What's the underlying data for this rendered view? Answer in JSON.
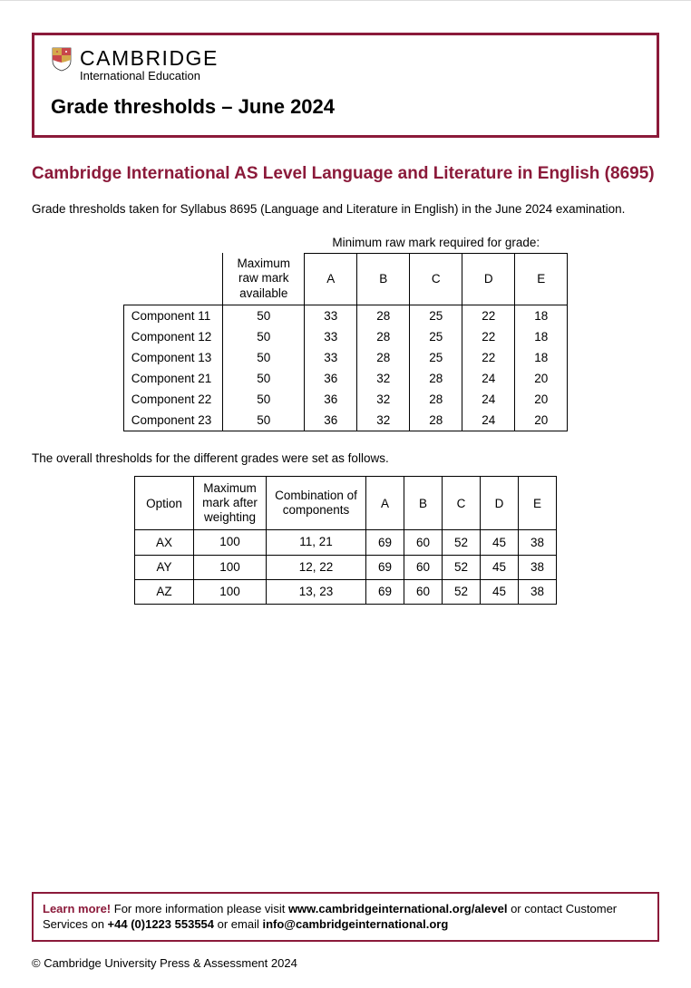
{
  "colors": {
    "brand": "#8b1a3a",
    "text": "#000000",
    "background": "#ffffff",
    "border": "#000000"
  },
  "header": {
    "brand_main": "CAMBRIDGE",
    "brand_sub": "International Education",
    "page_title": "Grade thresholds – June 2024"
  },
  "document": {
    "title": "Cambridge International AS Level Language and Literature in English (8695)",
    "intro": "Grade thresholds taken for Syllabus 8695 (Language and Literature in English) in the June 2024 examination."
  },
  "table1": {
    "spanner": "Minimum raw mark required for grade:",
    "hdr_max": "Maximum raw mark available",
    "grade_headers": [
      "A",
      "B",
      "C",
      "D",
      "E"
    ],
    "rows": [
      {
        "name": "Component 11",
        "max": "50",
        "g": [
          "33",
          "28",
          "25",
          "22",
          "18"
        ]
      },
      {
        "name": "Component 12",
        "max": "50",
        "g": [
          "33",
          "28",
          "25",
          "22",
          "18"
        ]
      },
      {
        "name": "Component 13",
        "max": "50",
        "g": [
          "33",
          "28",
          "25",
          "22",
          "18"
        ]
      },
      {
        "name": "Component 21",
        "max": "50",
        "g": [
          "36",
          "32",
          "28",
          "24",
          "20"
        ]
      },
      {
        "name": "Component 22",
        "max": "50",
        "g": [
          "36",
          "32",
          "28",
          "24",
          "20"
        ]
      },
      {
        "name": "Component 23",
        "max": "50",
        "g": [
          "36",
          "32",
          "28",
          "24",
          "20"
        ]
      }
    ]
  },
  "intro2": "The overall thresholds for the different grades were set as follows.",
  "table2": {
    "headers": {
      "option": "Option",
      "max_weight": "Maximum mark after weighting",
      "combination": "Combination of components",
      "grades": [
        "A",
        "B",
        "C",
        "D",
        "E"
      ]
    },
    "rows": [
      {
        "option": "AX",
        "max": "100",
        "comb": "11, 21",
        "g": [
          "69",
          "60",
          "52",
          "45",
          "38"
        ]
      },
      {
        "option": "AY",
        "max": "100",
        "comb": "12, 22",
        "g": [
          "69",
          "60",
          "52",
          "45",
          "38"
        ]
      },
      {
        "option": "AZ",
        "max": "100",
        "comb": "13, 23",
        "g": [
          "69",
          "60",
          "52",
          "45",
          "38"
        ]
      }
    ]
  },
  "footer": {
    "learn": "Learn more!",
    "text1": " For more information please visit ",
    "url": "www.cambridgeinternational.org/alevel",
    "text2": " or contact Customer Services on ",
    "phone": "+44 (0)1223 553554",
    "text3": " or email ",
    "email": "info@cambridgeinternational.org",
    "copyright": "© Cambridge University Press & Assessment 2024"
  }
}
